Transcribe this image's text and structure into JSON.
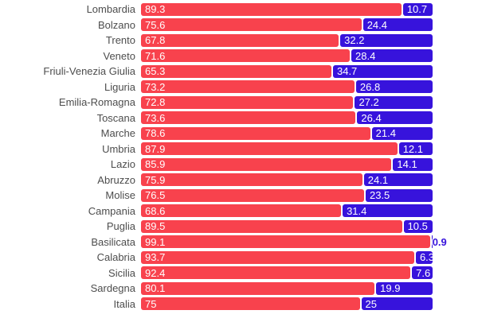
{
  "chart_data": {
    "type": "bar",
    "variant": "stacked-horizontal-100pct",
    "title": "",
    "xlabel": "",
    "ylabel": "",
    "xlim": [
      0,
      100
    ],
    "grid": false,
    "legend": "none",
    "value_labels": "inside-segment-start",
    "categories": [
      "Lombardia",
      "Bolzano",
      "Trento",
      "Veneto",
      "Friuli-Venezia Giulia",
      "Liguria",
      "Emilia-Romagna",
      "Toscana",
      "Marche",
      "Umbria",
      "Lazio",
      "Abruzzo",
      "Molise",
      "Campania",
      "Puglia",
      "Basilicata",
      "Calabria",
      "Sicilia",
      "Sardegna",
      "Italia"
    ],
    "series": [
      {
        "name": "red-segment",
        "color": "#f8424d",
        "values": [
          89.3,
          75.6,
          67.8,
          71.6,
          65.3,
          73.2,
          72.8,
          73.6,
          78.6,
          87.9,
          85.9,
          75.9,
          76.5,
          68.6,
          89.5,
          99.1,
          93.7,
          92.4,
          80.1,
          75
        ]
      },
      {
        "name": "blue-segment",
        "color": "#3713dc",
        "values": [
          10.7,
          24.4,
          32.2,
          28.4,
          34.7,
          26.8,
          27.2,
          26.4,
          21.4,
          12.1,
          14.1,
          24.1,
          23.5,
          31.4,
          10.5,
          0.9,
          6.3,
          7.6,
          19.9,
          25
        ]
      }
    ],
    "colors": {
      "category_label": "#4d4d4d",
      "value_label": "#ffffff",
      "background": "#ffffff"
    }
  }
}
